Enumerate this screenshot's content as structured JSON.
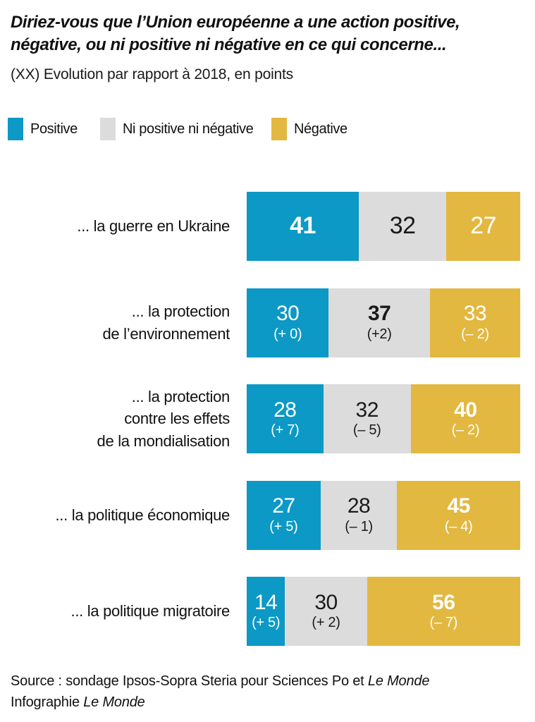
{
  "header": {
    "title_line1": "Diriez-vous que l’Union européenne a une action positive,",
    "title_line2": "négative, ou ni positive ni négative en ce qui concerne...",
    "subtitle": "(XX) Evolution par rapport à 2018, en points"
  },
  "legend": [
    {
      "key": "positive",
      "label": "Positive",
      "color": "#0c99c5",
      "text_color": "#ffffff"
    },
    {
      "key": "neutral",
      "label": "Ni positive ni négative",
      "color": "#dcdcdc",
      "text_color": "#1a1a1a"
    },
    {
      "key": "negative",
      "label": "Négative",
      "color": "#e3b840",
      "text_color": "#ffffff"
    }
  ],
  "chart_data": {
    "type": "bar",
    "stacked": true,
    "orientation": "horizontal",
    "x_range": [
      0,
      100
    ],
    "units": "percent (evolution in points vs 2018)",
    "grid": false,
    "legend_position": "top",
    "series_names": [
      "Positive",
      "Ni positive ni négative",
      "Négative"
    ],
    "segment_keys": [
      "positive",
      "neutral",
      "negative"
    ],
    "categories": [
      "... la guerre en Ukraine",
      "... la protection de l’environnement",
      "... la protection contre les effets de la mondialisation",
      "... la politique économique",
      "... la politique migratoire"
    ],
    "rows": [
      {
        "label_lines": [
          "... la guerre en Ukraine"
        ],
        "values": [
          41,
          32,
          27
        ],
        "deltas": null,
        "bold_index": 0
      },
      {
        "label_lines": [
          "... la protection",
          "de l’environnement"
        ],
        "values": [
          30,
          37,
          33
        ],
        "deltas": [
          "(+ 0)",
          "(+2)",
          "(– 2)"
        ],
        "bold_index": 1
      },
      {
        "label_lines": [
          "... la protection",
          "contre les effets",
          "de la mondialisation"
        ],
        "values": [
          28,
          32,
          40
        ],
        "deltas": [
          "(+ 7)",
          "(– 5)",
          "(– 2)"
        ],
        "bold_index": 2
      },
      {
        "label_lines": [
          "... la politique économique"
        ],
        "values": [
          27,
          28,
          45
        ],
        "deltas": [
          "(+ 5)",
          "(– 1)",
          "(– 4)"
        ],
        "bold_index": 2
      },
      {
        "label_lines": [
          "... la politique migratoire"
        ],
        "values": [
          14,
          30,
          56
        ],
        "deltas": [
          "(+ 5)",
          "(+ 2)",
          "(– 7)"
        ],
        "bold_index": 2
      }
    ]
  },
  "footer": {
    "source_prefix": "Source : sondage Ipsos-Sopra Steria pour Sciences Po et ",
    "source_italic": "Le Monde",
    "infographie_prefix": "Infographie ",
    "infographie_italic": "Le Monde"
  }
}
